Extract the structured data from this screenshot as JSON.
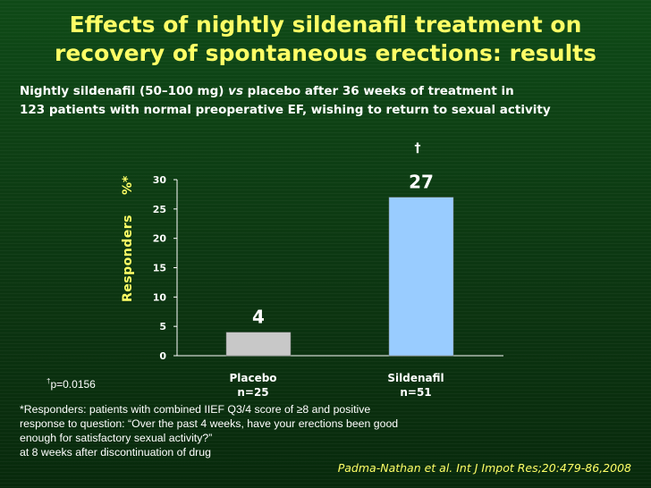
{
  "slide": {
    "title_line1": "Effects of nightly sildenafil treatment on",
    "title_line2": "recovery of spontaneous erections: results",
    "subtitle_part1": "Nightly sildenafil (50–100 mg) ",
    "subtitle_vs": "vs",
    "subtitle_part2": " placebo after 36 weeks of treatment in",
    "subtitle_line2": "123 patients with normal preoperative EF, wishing to return to sexual activity",
    "footnote_p_symbol": "†",
    "footnote_p_text": "p=0.0156",
    "footnote_lines": [
      "*Responders: patients with combined IIEF Q3/4 score of ≥8 and positive",
      "response to question: “Over the past 4 weeks, have your erections been good",
      "enough for satisfactory sexual activity?”",
      "at 8 weeks after discontinuation of drug"
    ],
    "citation": "Padma-Nathan et al. Int J Impot Res;20:479-86,2008"
  },
  "chart_data": {
    "type": "bar",
    "categories": [
      "Placebo",
      "Sildenafil"
    ],
    "category_sublabels": [
      "n=25",
      "n=51"
    ],
    "values": [
      4,
      27
    ],
    "data_labels": [
      "4",
      "27"
    ],
    "significance_marker": "†",
    "ylabel_main": "Responders",
    "ylabel_unit": "%*",
    "ylim": [
      0,
      30
    ],
    "yticks": [
      0,
      5,
      10,
      15,
      20,
      25,
      30
    ],
    "grid": false,
    "bar_colors": [
      "#c8c8c8",
      "#99ccff"
    ],
    "text_colors": {
      "title": "#ffff66",
      "ylabel": "#ffff66"
    }
  }
}
